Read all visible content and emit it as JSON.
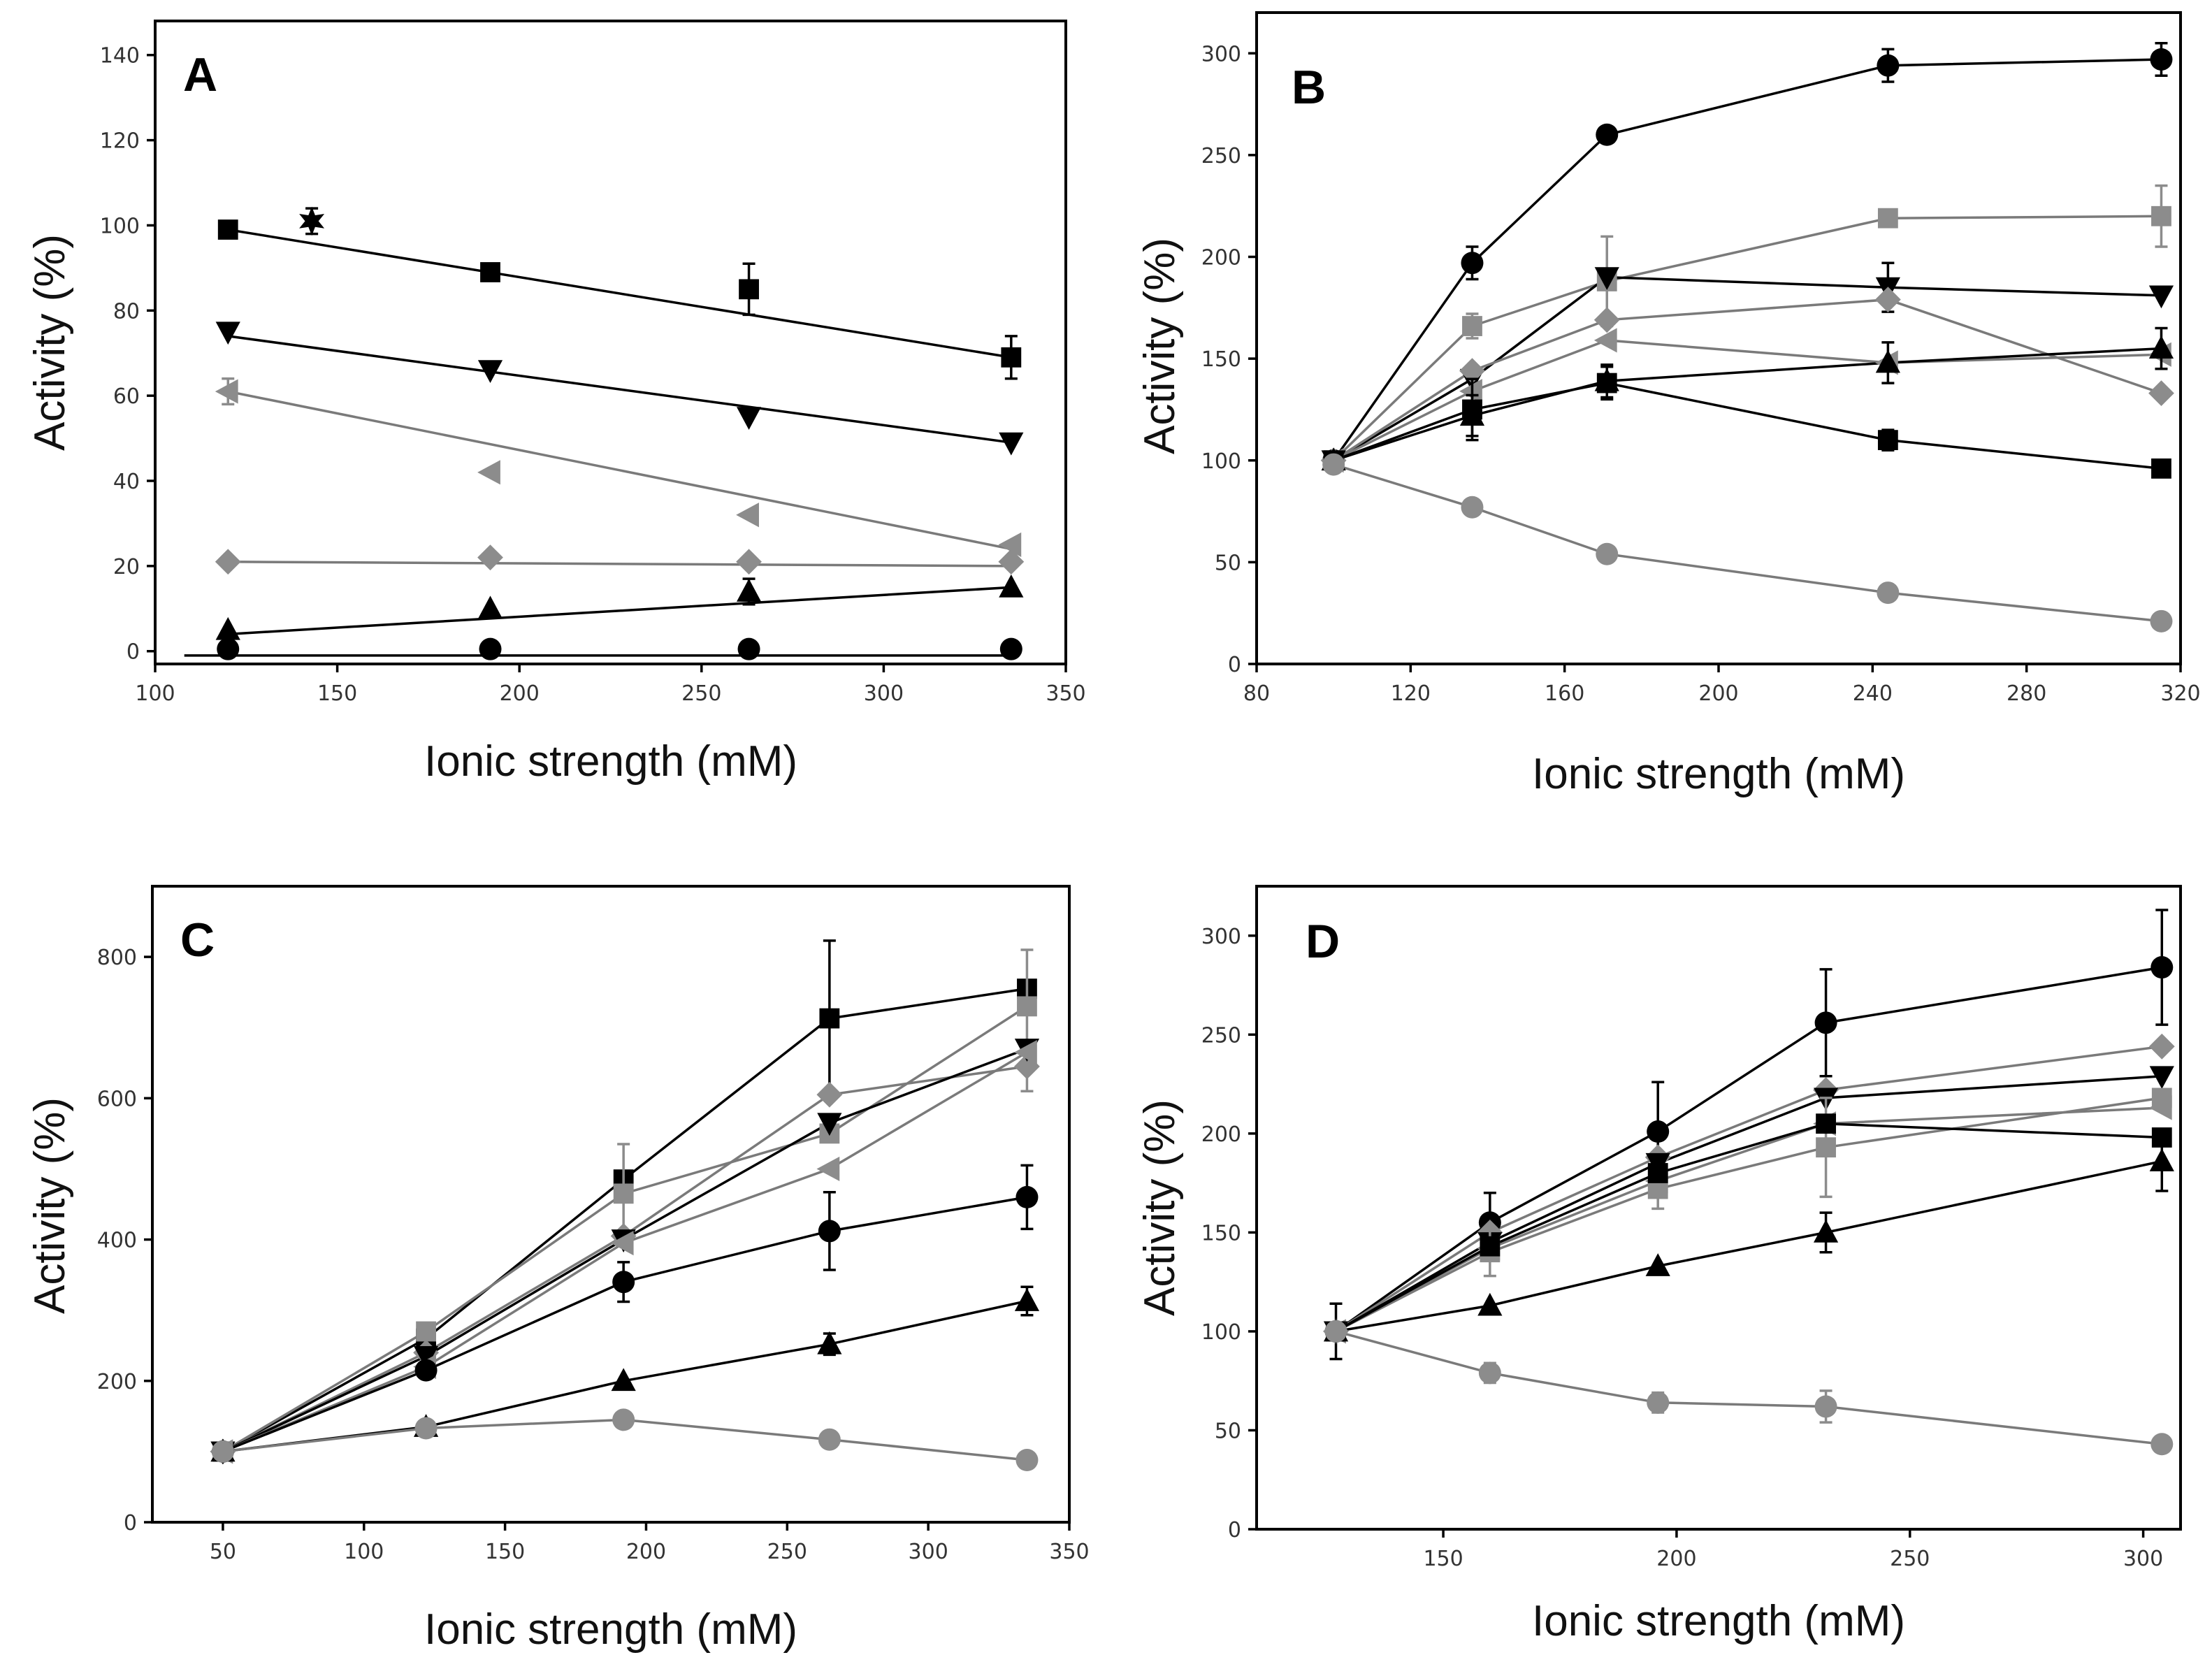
{
  "colors": {
    "black": "#000000",
    "gray": "#8c8c8c"
  },
  "chart_data": [
    {
      "type": "scatter",
      "panel": "A",
      "title": "",
      "xlabel": "Ionic strength (mM)",
      "ylabel": "Activity (%)",
      "xlim": [
        100,
        350
      ],
      "ylim": [
        -3,
        148
      ],
      "xticks": [
        100,
        150,
        200,
        250,
        300,
        350
      ],
      "yticks": [
        0,
        20,
        40,
        60,
        80,
        100,
        120,
        140
      ],
      "connect": "fit",
      "series": [
        {
          "marker": "square",
          "color": "#000000",
          "x": [
            120,
            192,
            263,
            335
          ],
          "y": [
            99,
            89,
            85,
            69
          ],
          "err": [
            0,
            0,
            6,
            5
          ],
          "fit": [
            [
              120,
              99
            ],
            [
              335,
              69
            ]
          ]
        },
        {
          "marker": "triangle-down",
          "color": "#000000",
          "x": [
            120,
            192,
            263,
            335
          ],
          "y": [
            75,
            66,
            55,
            49
          ],
          "err": [
            0,
            0,
            0,
            0
          ],
          "fit": [
            [
              120,
              74
            ],
            [
              335,
              49
            ]
          ]
        },
        {
          "marker": "triangle-left",
          "color": "#8c8c8c",
          "x": [
            120,
            192,
            263,
            335
          ],
          "y": [
            61,
            42,
            32,
            25
          ],
          "err": [
            3,
            0,
            0,
            0
          ],
          "fit": [
            [
              120,
              61
            ],
            [
              335,
              24
            ]
          ]
        },
        {
          "marker": "diamond",
          "color": "#8c8c8c",
          "x": [
            120,
            192,
            263,
            335
          ],
          "y": [
            21,
            22,
            21,
            21
          ],
          "err": [
            0,
            0,
            0,
            0
          ],
          "fit": [
            [
              120,
              21
            ],
            [
              335,
              20
            ]
          ]
        },
        {
          "marker": "triangle-up",
          "color": "#000000",
          "x": [
            120,
            192,
            263,
            335
          ],
          "y": [
            5,
            10,
            14,
            15
          ],
          "err": [
            0,
            0,
            3,
            0
          ],
          "fit": [
            [
              120,
              4
            ],
            [
              335,
              15
            ]
          ]
        },
        {
          "marker": "circle",
          "color": "#000000",
          "x": [
            120,
            192,
            263,
            335
          ],
          "y": [
            0.5,
            0.5,
            0.5,
            0.5
          ],
          "err": [
            0,
            0,
            0,
            0
          ],
          "fit": [
            [
              108,
              -1
            ],
            [
              335,
              -1
            ]
          ]
        },
        {
          "marker": "star",
          "color": "#000000",
          "x": [
            143
          ],
          "y": [
            101
          ],
          "err": [
            3
          ],
          "fit": []
        }
      ]
    },
    {
      "type": "line",
      "panel": "B",
      "title": "",
      "xlabel": "Ionic strength (mM)",
      "ylabel": "Activity (%)",
      "xlim": [
        80,
        320
      ],
      "ylim": [
        0,
        320
      ],
      "xticks": [
        80,
        120,
        160,
        200,
        240,
        280,
        320
      ],
      "yticks": [
        0,
        50,
        100,
        150,
        200,
        250,
        300
      ],
      "connect": "lines",
      "series": [
        {
          "marker": "circle",
          "color": "#000000",
          "x": [
            100,
            136,
            171,
            244,
            315
          ],
          "y": [
            100,
            197,
            260,
            294,
            297
          ],
          "err": [
            0,
            8,
            0,
            8,
            8
          ]
        },
        {
          "marker": "square",
          "color": "#8c8c8c",
          "x": [
            100,
            136,
            171,
            244,
            315
          ],
          "y": [
            100,
            166,
            188,
            219,
            220
          ],
          "err": [
            0,
            6,
            22,
            0,
            15
          ]
        },
        {
          "marker": "triangle-down",
          "color": "#000000",
          "x": [
            100,
            136,
            171,
            244,
            315
          ],
          "y": [
            100,
            140,
            190,
            185,
            181
          ],
          "err": [
            0,
            0,
            0,
            12,
            0
          ]
        },
        {
          "marker": "diamond",
          "color": "#8c8c8c",
          "x": [
            100,
            136,
            171,
            244,
            315
          ],
          "y": [
            100,
            144,
            169,
            179,
            133
          ],
          "err": [
            0,
            0,
            0,
            0,
            0
          ]
        },
        {
          "marker": "triangle-left",
          "color": "#8c8c8c",
          "x": [
            100,
            136,
            171,
            244,
            315
          ],
          "y": [
            100,
            134,
            159,
            148,
            152
          ],
          "err": [
            0,
            0,
            0,
            0,
            0
          ]
        },
        {
          "marker": "triangle-up",
          "color": "#000000",
          "x": [
            100,
            136,
            171,
            244,
            315
          ],
          "y": [
            100,
            122,
            139,
            148,
            155
          ],
          "err": [
            0,
            10,
            8,
            10,
            10
          ]
        },
        {
          "marker": "square",
          "color": "#000000",
          "x": [
            100,
            136,
            171,
            244,
            315
          ],
          "y": [
            100,
            125,
            138,
            110,
            96
          ],
          "err": [
            0,
            15,
            8,
            5,
            0
          ]
        },
        {
          "marker": "circle",
          "color": "#8c8c8c",
          "x": [
            100,
            136,
            171,
            244,
            315
          ],
          "y": [
            98,
            77,
            54,
            35,
            21
          ],
          "err": [
            0,
            0,
            0,
            0,
            0
          ]
        }
      ]
    },
    {
      "type": "line",
      "panel": "C",
      "title": "",
      "xlabel": "Ionic strength (mM)",
      "ylabel": "Activity (%)",
      "xlim": [
        25,
        350
      ],
      "ylim": [
        0,
        900
      ],
      "xticks": [
        50,
        100,
        150,
        200,
        250,
        300,
        350
      ],
      "yticks": [
        0,
        200,
        400,
        600,
        800
      ],
      "connect": "lines",
      "series": [
        {
          "marker": "square",
          "color": "#000000",
          "x": [
            50,
            122,
            192,
            265,
            335
          ],
          "y": [
            100,
            260,
            485,
            713,
            755
          ],
          "err": [
            0,
            0,
            0,
            110,
            0
          ]
        },
        {
          "marker": "square",
          "color": "#8c8c8c",
          "x": [
            50,
            122,
            192,
            265,
            335
          ],
          "y": [
            100,
            270,
            465,
            550,
            730
          ],
          "err": [
            0,
            0,
            70,
            0,
            80
          ]
        },
        {
          "marker": "diamond",
          "color": "#8c8c8c",
          "x": [
            50,
            122,
            192,
            265,
            335
          ],
          "y": [
            100,
            240,
            405,
            605,
            645
          ],
          "err": [
            0,
            0,
            0,
            0,
            35
          ]
        },
        {
          "marker": "triangle-down",
          "color": "#000000",
          "x": [
            50,
            122,
            192,
            265,
            335
          ],
          "y": [
            100,
            235,
            400,
            565,
            670
          ],
          "err": [
            0,
            0,
            0,
            0,
            0
          ]
        },
        {
          "marker": "triangle-left",
          "color": "#8c8c8c",
          "x": [
            50,
            122,
            192,
            265,
            335
          ],
          "y": [
            100,
            220,
            395,
            500,
            665
          ],
          "err": [
            0,
            0,
            0,
            0,
            0
          ]
        },
        {
          "marker": "circle",
          "color": "#000000",
          "x": [
            50,
            122,
            192,
            265,
            335
          ],
          "y": [
            100,
            215,
            340,
            412,
            460
          ],
          "err": [
            0,
            0,
            28,
            55,
            45
          ]
        },
        {
          "marker": "triangle-up",
          "color": "#000000",
          "x": [
            50,
            122,
            192,
            265,
            335
          ],
          "y": [
            100,
            135,
            200,
            252,
            313
          ],
          "err": [
            0,
            0,
            0,
            15,
            20
          ]
        },
        {
          "marker": "circle",
          "color": "#8c8c8c",
          "x": [
            50,
            122,
            192,
            265,
            335
          ],
          "y": [
            100,
            133,
            145,
            117,
            88
          ],
          "err": [
            0,
            0,
            0,
            0,
            0
          ]
        }
      ]
    },
    {
      "type": "line",
      "panel": "D",
      "title": "",
      "xlabel": "Ionic strength (mM)",
      "ylabel": "Activity (%)",
      "xlim": [
        110,
        308
      ],
      "ylim": [
        0,
        325
      ],
      "xticks": [
        150,
        200,
        250,
        300
      ],
      "yticks": [
        0,
        50,
        100,
        150,
        200,
        250,
        300
      ],
      "connect": "lines",
      "series": [
        {
          "marker": "circle",
          "color": "#000000",
          "x": [
            127,
            160,
            196,
            232,
            304
          ],
          "y": [
            100,
            155,
            201,
            256,
            284
          ],
          "err": [
            14,
            15,
            25,
            27,
            29
          ]
        },
        {
          "marker": "diamond",
          "color": "#8c8c8c",
          "x": [
            127,
            160,
            196,
            232,
            304
          ],
          "y": [
            100,
            150,
            188,
            222,
            244
          ],
          "err": [
            0,
            0,
            0,
            0,
            0
          ]
        },
        {
          "marker": "triangle-down",
          "color": "#000000",
          "x": [
            127,
            160,
            196,
            232,
            304
          ],
          "y": [
            100,
            145,
            185,
            218,
            229
          ],
          "err": [
            0,
            0,
            0,
            0,
            0
          ]
        },
        {
          "marker": "square",
          "color": "#8c8c8c",
          "x": [
            127,
            160,
            196,
            232,
            304
          ],
          "y": [
            100,
            140,
            172,
            193,
            218
          ],
          "err": [
            0,
            12,
            10,
            25,
            0
          ]
        },
        {
          "marker": "triangle-left",
          "color": "#8c8c8c",
          "x": [
            127,
            160,
            196,
            232,
            304
          ],
          "y": [
            100,
            142,
            176,
            205,
            213
          ],
          "err": [
            0,
            0,
            0,
            0,
            0
          ]
        },
        {
          "marker": "square",
          "color": "#000000",
          "x": [
            127,
            160,
            196,
            232,
            304
          ],
          "y": [
            100,
            143,
            180,
            205,
            198
          ],
          "err": [
            0,
            0,
            0,
            0,
            0
          ]
        },
        {
          "marker": "triangle-up",
          "color": "#000000",
          "x": [
            127,
            160,
            196,
            232,
            304
          ],
          "y": [
            100,
            113,
            133,
            150,
            186
          ],
          "err": [
            0,
            0,
            0,
            10,
            15
          ]
        },
        {
          "marker": "circle",
          "color": "#8c8c8c",
          "x": [
            127,
            160,
            196,
            232,
            304
          ],
          "y": [
            100,
            79,
            64,
            62,
            43
          ],
          "err": [
            0,
            5,
            5,
            8,
            0
          ]
        }
      ]
    }
  ]
}
